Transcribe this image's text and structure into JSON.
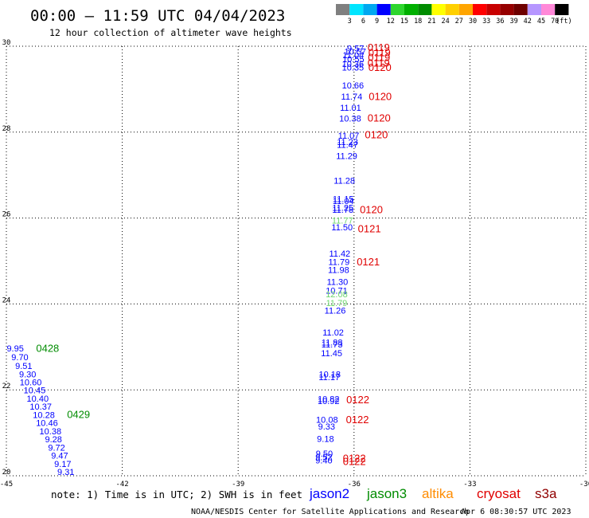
{
  "header": {
    "title": "00:00 – 11:59 UTC 04/04/2023",
    "subtitle": "12 hour collection of altimeter wave heights"
  },
  "colorbar": {
    "ticks": [
      "3",
      "6",
      "9",
      "12",
      "15",
      "18",
      "21",
      "24",
      "27",
      "30",
      "33",
      "36",
      "39",
      "42",
      "45",
      "70"
    ],
    "unit": "(ft)",
    "colors": [
      "#7f7f7f",
      "#00e5ff",
      "#00a8f0",
      "#0000ff",
      "#2ed62e",
      "#00b000",
      "#008c00",
      "#ffff00",
      "#ffd000",
      "#ffa500",
      "#ff0000",
      "#c80000",
      "#960000",
      "#6e0000",
      "#b696ff",
      "#ff88d8",
      "#000000"
    ]
  },
  "footer": {
    "note": "note: 1) Time is in UTC; 2) SWH is in feet",
    "legend": [
      {
        "name": "jason2",
        "color": "#0000ff"
      },
      {
        "name": "jason3",
        "color": "#008c00"
      },
      {
        "name": "altika",
        "color": "#ff8c00"
      },
      {
        "name": "cryosat",
        "color": "#e00000"
      },
      {
        "name": "s3a",
        "color": "#900000"
      }
    ],
    "credit": "NOAA/NESDIS Center for Satellite Applications and Research",
    "timestamp": "Apr  6 08:30:57 UTC 2023"
  },
  "chart_data": {
    "type": "scatter",
    "xlim": [
      -45,
      -30
    ],
    "ylim": [
      20,
      30
    ],
    "xticks": [
      -45,
      -42,
      -39,
      -36,
      -33,
      -30
    ],
    "xtick_labels": [
      "-45",
      "-42",
      "-39",
      "-36",
      "-33",
      "-30"
    ],
    "yticks": [
      20,
      22,
      24,
      26,
      28,
      30
    ],
    "ytick_labels": [
      "20",
      "22",
      "24",
      "26",
      "28",
      "30"
    ],
    "grid": true,
    "points": [
      {
        "x": -35.96,
        "y": 29.95,
        "v": "9.57",
        "s": "jason2"
      },
      {
        "x": -35.97,
        "y": 29.88,
        "v": "10.57",
        "s": "jason2"
      },
      {
        "x": -36.02,
        "y": 29.8,
        "v": "11.04",
        "s": "jason2"
      },
      {
        "x": -36.02,
        "y": 29.7,
        "v": "10.55",
        "s": "jason2"
      },
      {
        "x": -36.03,
        "y": 29.59,
        "v": "10.36",
        "s": "jason2"
      },
      {
        "x": -36.03,
        "y": 29.51,
        "v": "10.35",
        "s": "jason2"
      },
      {
        "x": -36.03,
        "y": 29.09,
        "v": "10.66",
        "s": "jason2"
      },
      {
        "x": -36.06,
        "y": 28.83,
        "v": "11.74",
        "s": "jason2"
      },
      {
        "x": -36.09,
        "y": 28.57,
        "v": "11.01",
        "s": "jason2"
      },
      {
        "x": -36.1,
        "y": 28.32,
        "v": "10.38",
        "s": "jason2"
      },
      {
        "x": -36.14,
        "y": 27.92,
        "v": "11.07",
        "s": "jason2"
      },
      {
        "x": -36.17,
        "y": 27.77,
        "v": "11.23",
        "s": "jason2"
      },
      {
        "x": -36.17,
        "y": 27.71,
        "v": "11.47",
        "s": "jason2"
      },
      {
        "x": -36.19,
        "y": 27.45,
        "v": "11.29",
        "s": "jason2"
      },
      {
        "x": -36.25,
        "y": 26.87,
        "v": "11.28",
        "s": "jason2"
      },
      {
        "x": -36.28,
        "y": 26.45,
        "v": "11.15",
        "s": "jason2"
      },
      {
        "x": -36.28,
        "y": 26.4,
        "v": "11.04",
        "s": "jason2"
      },
      {
        "x": -36.29,
        "y": 26.24,
        "v": "11.25",
        "s": "jason2"
      },
      {
        "x": -36.29,
        "y": 26.2,
        "v": "11.78",
        "s": "jason2"
      },
      {
        "x": -36.3,
        "y": 25.95,
        "v": "11.77",
        "s": "jason3"
      },
      {
        "x": -36.31,
        "y": 25.79,
        "v": "11.50",
        "s": "jason2"
      },
      {
        "x": -36.37,
        "y": 25.18,
        "v": "11.42",
        "s": "jason2"
      },
      {
        "x": -36.39,
        "y": 24.98,
        "v": "11.79",
        "s": "jason2"
      },
      {
        "x": -36.4,
        "y": 24.8,
        "v": "11.98",
        "s": "jason2"
      },
      {
        "x": -36.43,
        "y": 24.52,
        "v": "11.30",
        "s": "jason2"
      },
      {
        "x": -36.45,
        "y": 24.31,
        "v": "10.71",
        "s": "jason2"
      },
      {
        "x": -36.45,
        "y": 24.23,
        "v": "12.08",
        "s": "jason3"
      },
      {
        "x": -36.45,
        "y": 24.03,
        "v": "11.79",
        "s": "jason3"
      },
      {
        "x": -36.49,
        "y": 23.85,
        "v": "11.26",
        "s": "jason2"
      },
      {
        "x": -36.54,
        "y": 23.34,
        "v": "11.02",
        "s": "jason2"
      },
      {
        "x": -36.57,
        "y": 23.11,
        "v": "11.88",
        "s": "jason2"
      },
      {
        "x": -36.57,
        "y": 23.06,
        "v": "11.73",
        "s": "jason2"
      },
      {
        "x": -36.58,
        "y": 22.86,
        "v": "11.45",
        "s": "jason2"
      },
      {
        "x": -36.63,
        "y": 22.37,
        "v": "10.18",
        "s": "jason2"
      },
      {
        "x": -36.64,
        "y": 22.3,
        "v": "11.17",
        "s": "jason2"
      },
      {
        "x": -36.66,
        "y": 21.79,
        "v": "10.82",
        "s": "jason2"
      },
      {
        "x": -36.66,
        "y": 21.74,
        "v": "10.92",
        "s": "jason2"
      },
      {
        "x": -36.7,
        "y": 21.31,
        "v": "10.08",
        "s": "jason2"
      },
      {
        "x": -36.71,
        "y": 21.15,
        "v": "9.33",
        "s": "jason2"
      },
      {
        "x": -36.74,
        "y": 20.86,
        "v": "9.18",
        "s": "jason2"
      },
      {
        "x": -36.77,
        "y": 20.52,
        "v": "9.50",
        "s": "jason2"
      },
      {
        "x": -36.78,
        "y": 20.44,
        "v": "9.52",
        "s": "jason2"
      },
      {
        "x": -36.78,
        "y": 20.36,
        "v": "9.40",
        "s": "jason2"
      },
      {
        "x": -44.77,
        "y": 22.97,
        "v": "9.95",
        "s": "jason2"
      },
      {
        "x": -44.65,
        "y": 22.76,
        "v": "9.70",
        "s": "jason2"
      },
      {
        "x": -44.55,
        "y": 22.56,
        "v": "9.51",
        "s": "jason2"
      },
      {
        "x": -44.45,
        "y": 22.37,
        "v": "9.30",
        "s": "jason2"
      },
      {
        "x": -44.37,
        "y": 22.18,
        "v": "10.60",
        "s": "jason2"
      },
      {
        "x": -44.27,
        "y": 21.99,
        "v": "10.45",
        "s": "jason2"
      },
      {
        "x": -44.19,
        "y": 21.8,
        "v": "10.40",
        "s": "jason2"
      },
      {
        "x": -44.11,
        "y": 21.61,
        "v": "10.37",
        "s": "jason2"
      },
      {
        "x": -44.03,
        "y": 21.42,
        "v": "10.28",
        "s": "jason2"
      },
      {
        "x": -43.95,
        "y": 21.23,
        "v": "10.46",
        "s": "jason2"
      },
      {
        "x": -43.86,
        "y": 21.04,
        "v": "10.38",
        "s": "jason2"
      },
      {
        "x": -43.78,
        "y": 20.85,
        "v": "9.28",
        "s": "jason2"
      },
      {
        "x": -43.7,
        "y": 20.66,
        "v": "9.72",
        "s": "jason2"
      },
      {
        "x": -43.62,
        "y": 20.47,
        "v": "9.47",
        "s": "jason2"
      },
      {
        "x": -43.54,
        "y": 20.28,
        "v": "9.17",
        "s": "jason2"
      },
      {
        "x": -43.46,
        "y": 20.09,
        "v": "9.31",
        "s": "jason2"
      }
    ],
    "time_labels": [
      {
        "x": -35.65,
        "y": 29.98,
        "v": "0119",
        "c": "#e00000"
      },
      {
        "x": -35.63,
        "y": 29.86,
        "v": "0119",
        "c": "#e00000"
      },
      {
        "x": -35.64,
        "y": 29.75,
        "v": "0119",
        "c": "#e00000"
      },
      {
        "x": -35.65,
        "y": 29.62,
        "v": "0119",
        "c": "#e00000"
      },
      {
        "x": -35.63,
        "y": 29.52,
        "v": "0120",
        "c": "#e00000"
      },
      {
        "x": -35.62,
        "y": 28.84,
        "v": "0120",
        "c": "#e00000"
      },
      {
        "x": -35.65,
        "y": 28.34,
        "v": "0120",
        "c": "#e00000"
      },
      {
        "x": -35.72,
        "y": 27.95,
        "v": "0120",
        "c": "#e00000"
      },
      {
        "x": -35.85,
        "y": 26.21,
        "v": "0120",
        "c": "#e00000"
      },
      {
        "x": -35.9,
        "y": 25.76,
        "v": "0121",
        "c": "#e00000"
      },
      {
        "x": -35.93,
        "y": 24.99,
        "v": "0121",
        "c": "#e00000"
      },
      {
        "x": -36.2,
        "y": 21.78,
        "v": "0122",
        "c": "#e00000"
      },
      {
        "x": -36.21,
        "y": 21.32,
        "v": "0122",
        "c": "#e00000"
      },
      {
        "x": -36.29,
        "y": 20.42,
        "v": "0122",
        "c": "#e00000"
      },
      {
        "x": -36.29,
        "y": 20.34,
        "v": "0122",
        "c": "#e00000"
      },
      {
        "x": -44.23,
        "y": 22.98,
        "v": "0428",
        "c": "#008c00"
      },
      {
        "x": -43.43,
        "y": 21.44,
        "v": "0429",
        "c": "#008c00"
      }
    ]
  }
}
